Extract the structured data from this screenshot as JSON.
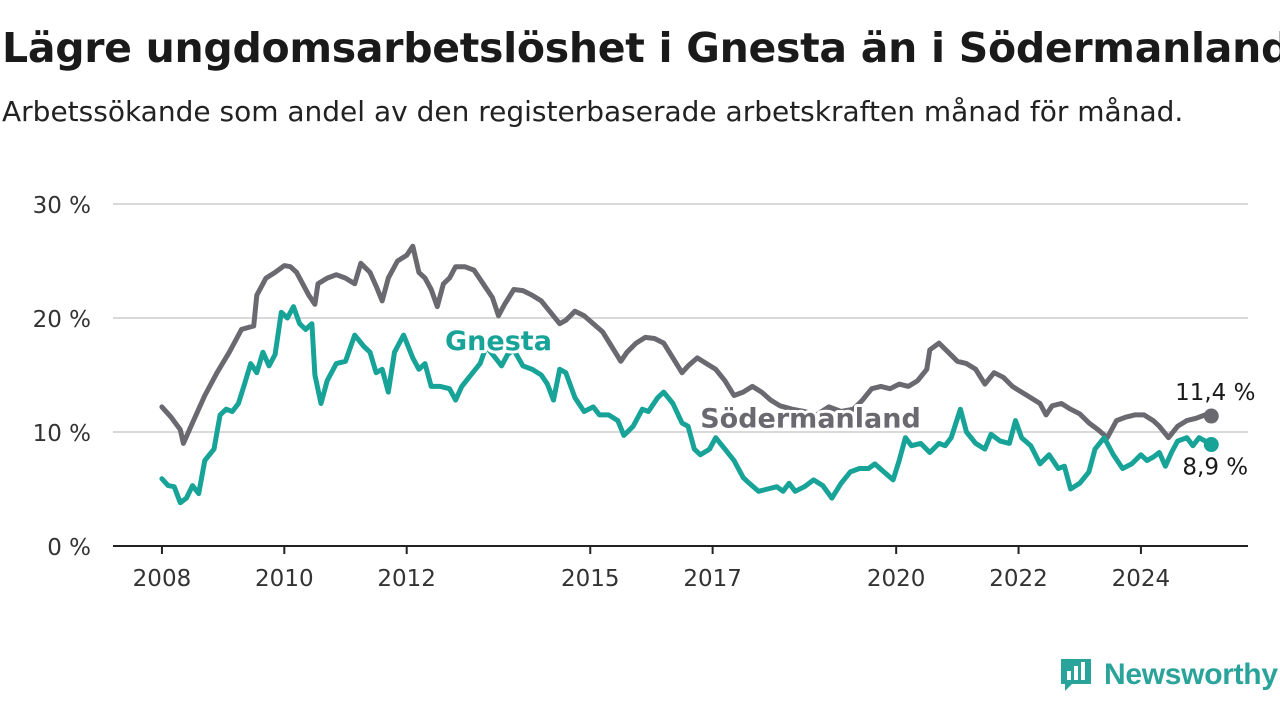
{
  "title": "Lägre ungdomsarbetslöshet i Gnesta än i Södermanland",
  "subtitle": "Arbetssökande som andel av den registerbaserade arbetskraften månad för månad.",
  "brand": {
    "name": "Newsworthy",
    "color": "#2aa39a",
    "icon": "newsworthy-logo-icon"
  },
  "chart_data": {
    "type": "line",
    "y_ticks": [
      "0 %",
      "10 %",
      "20 %",
      "30 %"
    ],
    "y_tick_values": [
      0,
      10,
      20,
      30
    ],
    "ylim": [
      0,
      30
    ],
    "x_ticks": [
      "2008",
      "2010",
      "2012",
      "2015",
      "2017",
      "2020",
      "2022",
      "2024"
    ],
    "x_tick_values": [
      2008.0,
      2010.0,
      2012.0,
      2015.0,
      2017.0,
      2020.0,
      2022.0,
      2024.0
    ],
    "xlim": [
      2007.2,
      2025.75
    ],
    "grid": true,
    "series": [
      {
        "name": "Södermanland",
        "color": "#6b6970",
        "label_color": "#6b6970",
        "end_label": "11,4 %",
        "points": [
          [
            2008.0,
            12.2
          ],
          [
            2008.15,
            11.3
          ],
          [
            2008.3,
            10.2
          ],
          [
            2008.35,
            9.0
          ],
          [
            2008.5,
            10.8
          ],
          [
            2008.7,
            13.2
          ],
          [
            2008.9,
            15.2
          ],
          [
            2009.1,
            17.0
          ],
          [
            2009.3,
            19.0
          ],
          [
            2009.5,
            19.3
          ],
          [
            2009.55,
            22.0
          ],
          [
            2009.7,
            23.5
          ],
          [
            2009.85,
            24.0
          ],
          [
            2010.0,
            24.6
          ],
          [
            2010.1,
            24.5
          ],
          [
            2010.2,
            24.0
          ],
          [
            2010.3,
            23.0
          ],
          [
            2010.4,
            22.0
          ],
          [
            2010.5,
            21.2
          ],
          [
            2010.55,
            23.0
          ],
          [
            2010.7,
            23.5
          ],
          [
            2010.85,
            23.8
          ],
          [
            2011.0,
            23.5
          ],
          [
            2011.15,
            23.0
          ],
          [
            2011.25,
            24.8
          ],
          [
            2011.4,
            24.0
          ],
          [
            2011.5,
            22.8
          ],
          [
            2011.6,
            21.5
          ],
          [
            2011.7,
            23.5
          ],
          [
            2011.85,
            25.0
          ],
          [
            2012.0,
            25.5
          ],
          [
            2012.1,
            26.3
          ],
          [
            2012.2,
            24.0
          ],
          [
            2012.3,
            23.5
          ],
          [
            2012.4,
            22.5
          ],
          [
            2012.5,
            21.0
          ],
          [
            2012.6,
            23.0
          ],
          [
            2012.7,
            23.5
          ],
          [
            2012.8,
            24.5
          ],
          [
            2012.95,
            24.5
          ],
          [
            2013.1,
            24.2
          ],
          [
            2013.25,
            23.0
          ],
          [
            2013.4,
            21.8
          ],
          [
            2013.5,
            20.2
          ],
          [
            2013.6,
            21.2
          ],
          [
            2013.75,
            22.5
          ],
          [
            2013.9,
            22.4
          ],
          [
            2014.05,
            22.0
          ],
          [
            2014.2,
            21.5
          ],
          [
            2014.35,
            20.5
          ],
          [
            2014.5,
            19.5
          ],
          [
            2014.6,
            19.8
          ],
          [
            2014.75,
            20.6
          ],
          [
            2014.9,
            20.2
          ],
          [
            2015.05,
            19.5
          ],
          [
            2015.2,
            18.8
          ],
          [
            2015.35,
            17.5
          ],
          [
            2015.5,
            16.2
          ],
          [
            2015.6,
            17.0
          ],
          [
            2015.75,
            17.8
          ],
          [
            2015.9,
            18.3
          ],
          [
            2016.05,
            18.2
          ],
          [
            2016.2,
            17.8
          ],
          [
            2016.35,
            16.5
          ],
          [
            2016.5,
            15.2
          ],
          [
            2016.6,
            15.8
          ],
          [
            2016.75,
            16.5
          ],
          [
            2016.9,
            16.0
          ],
          [
            2017.05,
            15.5
          ],
          [
            2017.2,
            14.5
          ],
          [
            2017.35,
            13.2
          ],
          [
            2017.5,
            13.5
          ],
          [
            2017.65,
            14.0
          ],
          [
            2017.8,
            13.5
          ],
          [
            2017.95,
            12.8
          ],
          [
            2018.1,
            12.3
          ],
          [
            2018.3,
            12.0
          ],
          [
            2018.5,
            11.8
          ],
          [
            2018.7,
            11.5
          ],
          [
            2018.9,
            12.2
          ],
          [
            2019.1,
            11.8
          ],
          [
            2019.3,
            12.0
          ],
          [
            2019.45,
            12.8
          ],
          [
            2019.6,
            13.8
          ],
          [
            2019.75,
            14.0
          ],
          [
            2019.9,
            13.8
          ],
          [
            2020.05,
            14.2
          ],
          [
            2020.2,
            14.0
          ],
          [
            2020.35,
            14.5
          ],
          [
            2020.5,
            15.5
          ],
          [
            2020.55,
            17.2
          ],
          [
            2020.7,
            17.8
          ],
          [
            2020.85,
            17.0
          ],
          [
            2021.0,
            16.2
          ],
          [
            2021.15,
            16.0
          ],
          [
            2021.3,
            15.5
          ],
          [
            2021.45,
            14.2
          ],
          [
            2021.6,
            15.2
          ],
          [
            2021.75,
            14.8
          ],
          [
            2021.9,
            14.0
          ],
          [
            2022.05,
            13.5
          ],
          [
            2022.2,
            13.0
          ],
          [
            2022.35,
            12.5
          ],
          [
            2022.45,
            11.5
          ],
          [
            2022.55,
            12.3
          ],
          [
            2022.7,
            12.5
          ],
          [
            2022.85,
            12.0
          ],
          [
            2023.0,
            11.6
          ],
          [
            2023.15,
            10.8
          ],
          [
            2023.3,
            10.2
          ],
          [
            2023.45,
            9.5
          ],
          [
            2023.6,
            11.0
          ],
          [
            2023.75,
            11.3
          ],
          [
            2023.9,
            11.5
          ],
          [
            2024.05,
            11.5
          ],
          [
            2024.2,
            11.0
          ],
          [
            2024.3,
            10.5
          ],
          [
            2024.45,
            9.5
          ],
          [
            2024.6,
            10.5
          ],
          [
            2024.75,
            11.0
          ],
          [
            2024.9,
            11.2
          ],
          [
            2025.05,
            11.5
          ],
          [
            2025.15,
            11.4
          ]
        ]
      },
      {
        "name": "Gnesta",
        "color": "#17a398",
        "label_color": "#17a398",
        "end_label": "8,9 %",
        "points": [
          [
            2008.0,
            5.9
          ],
          [
            2008.1,
            5.3
          ],
          [
            2008.2,
            5.2
          ],
          [
            2008.3,
            3.8
          ],
          [
            2008.4,
            4.2
          ],
          [
            2008.5,
            5.3
          ],
          [
            2008.6,
            4.6
          ],
          [
            2008.7,
            7.5
          ],
          [
            2008.85,
            8.5
          ],
          [
            2008.95,
            11.5
          ],
          [
            2009.05,
            12.0
          ],
          [
            2009.15,
            11.8
          ],
          [
            2009.25,
            12.5
          ],
          [
            2009.35,
            14.2
          ],
          [
            2009.45,
            16.0
          ],
          [
            2009.55,
            15.2
          ],
          [
            2009.65,
            17.0
          ],
          [
            2009.75,
            15.8
          ],
          [
            2009.85,
            16.8
          ],
          [
            2009.95,
            20.5
          ],
          [
            2010.05,
            20.0
          ],
          [
            2010.15,
            21.0
          ],
          [
            2010.25,
            19.5
          ],
          [
            2010.35,
            19.0
          ],
          [
            2010.45,
            19.5
          ],
          [
            2010.5,
            15.0
          ],
          [
            2010.6,
            12.5
          ],
          [
            2010.7,
            14.5
          ],
          [
            2010.85,
            16.0
          ],
          [
            2011.0,
            16.2
          ],
          [
            2011.15,
            18.5
          ],
          [
            2011.3,
            17.5
          ],
          [
            2011.4,
            17.0
          ],
          [
            2011.5,
            15.2
          ],
          [
            2011.6,
            15.5
          ],
          [
            2011.7,
            13.5
          ],
          [
            2011.8,
            17.0
          ],
          [
            2011.95,
            18.5
          ],
          [
            2012.1,
            16.5
          ],
          [
            2012.2,
            15.5
          ],
          [
            2012.3,
            16.0
          ],
          [
            2012.4,
            14.0
          ],
          [
            2012.55,
            14.0
          ],
          [
            2012.7,
            13.8
          ],
          [
            2012.8,
            12.8
          ],
          [
            2012.9,
            14.0
          ],
          [
            2013.05,
            15.0
          ],
          [
            2013.2,
            16.0
          ],
          [
            2013.3,
            17.5
          ],
          [
            2013.45,
            16.5
          ],
          [
            2013.55,
            15.8
          ],
          [
            2013.65,
            16.8
          ],
          [
            2013.75,
            17.2
          ],
          [
            2013.9,
            15.8
          ],
          [
            2014.05,
            15.5
          ],
          [
            2014.2,
            15.0
          ],
          [
            2014.3,
            14.2
          ],
          [
            2014.4,
            12.8
          ],
          [
            2014.5,
            15.5
          ],
          [
            2014.6,
            15.2
          ],
          [
            2014.75,
            13.0
          ],
          [
            2014.9,
            11.8
          ],
          [
            2015.05,
            12.2
          ],
          [
            2015.15,
            11.5
          ],
          [
            2015.3,
            11.5
          ],
          [
            2015.45,
            11.0
          ],
          [
            2015.55,
            9.7
          ],
          [
            2015.7,
            10.5
          ],
          [
            2015.85,
            12.0
          ],
          [
            2015.95,
            11.8
          ],
          [
            2016.1,
            13.0
          ],
          [
            2016.2,
            13.5
          ],
          [
            2016.35,
            12.5
          ],
          [
            2016.5,
            10.8
          ],
          [
            2016.6,
            10.5
          ],
          [
            2016.7,
            8.5
          ],
          [
            2016.8,
            8.0
          ],
          [
            2016.95,
            8.5
          ],
          [
            2017.05,
            9.5
          ],
          [
            2017.2,
            8.5
          ],
          [
            2017.35,
            7.5
          ],
          [
            2017.5,
            6.0
          ],
          [
            2017.6,
            5.5
          ],
          [
            2017.75,
            4.8
          ],
          [
            2017.9,
            5.0
          ],
          [
            2018.05,
            5.2
          ],
          [
            2018.15,
            4.8
          ],
          [
            2018.25,
            5.5
          ],
          [
            2018.35,
            4.8
          ],
          [
            2018.5,
            5.2
          ],
          [
            2018.65,
            5.8
          ],
          [
            2018.8,
            5.3
          ],
          [
            2018.95,
            4.2
          ],
          [
            2019.1,
            5.5
          ],
          [
            2019.25,
            6.5
          ],
          [
            2019.4,
            6.8
          ],
          [
            2019.55,
            6.8
          ],
          [
            2019.65,
            7.2
          ],
          [
            2019.8,
            6.5
          ],
          [
            2019.95,
            5.8
          ],
          [
            2020.05,
            7.5
          ],
          [
            2020.15,
            9.5
          ],
          [
            2020.25,
            8.8
          ],
          [
            2020.4,
            9.0
          ],
          [
            2020.55,
            8.2
          ],
          [
            2020.7,
            9.0
          ],
          [
            2020.8,
            8.8
          ],
          [
            2020.9,
            9.5
          ],
          [
            2021.05,
            12.0
          ],
          [
            2021.15,
            10.0
          ],
          [
            2021.3,
            9.0
          ],
          [
            2021.45,
            8.5
          ],
          [
            2021.55,
            9.8
          ],
          [
            2021.7,
            9.2
          ],
          [
            2021.85,
            9.0
          ],
          [
            2021.95,
            11.0
          ],
          [
            2022.05,
            9.5
          ],
          [
            2022.2,
            8.8
          ],
          [
            2022.35,
            7.2
          ],
          [
            2022.5,
            8.0
          ],
          [
            2022.65,
            6.8
          ],
          [
            2022.75,
            7.0
          ],
          [
            2022.85,
            5.0
          ],
          [
            2023.0,
            5.5
          ],
          [
            2023.15,
            6.5
          ],
          [
            2023.25,
            8.5
          ],
          [
            2023.4,
            9.5
          ],
          [
            2023.55,
            8.0
          ],
          [
            2023.7,
            6.8
          ],
          [
            2023.85,
            7.2
          ],
          [
            2024.0,
            8.0
          ],
          [
            2024.1,
            7.5
          ],
          [
            2024.2,
            7.8
          ],
          [
            2024.3,
            8.2
          ],
          [
            2024.4,
            7.0
          ],
          [
            2024.5,
            8.2
          ],
          [
            2024.6,
            9.2
          ],
          [
            2024.75,
            9.5
          ],
          [
            2024.85,
            8.8
          ],
          [
            2024.95,
            9.5
          ],
          [
            2025.05,
            9.2
          ],
          [
            2025.15,
            8.9
          ]
        ]
      }
    ]
  }
}
